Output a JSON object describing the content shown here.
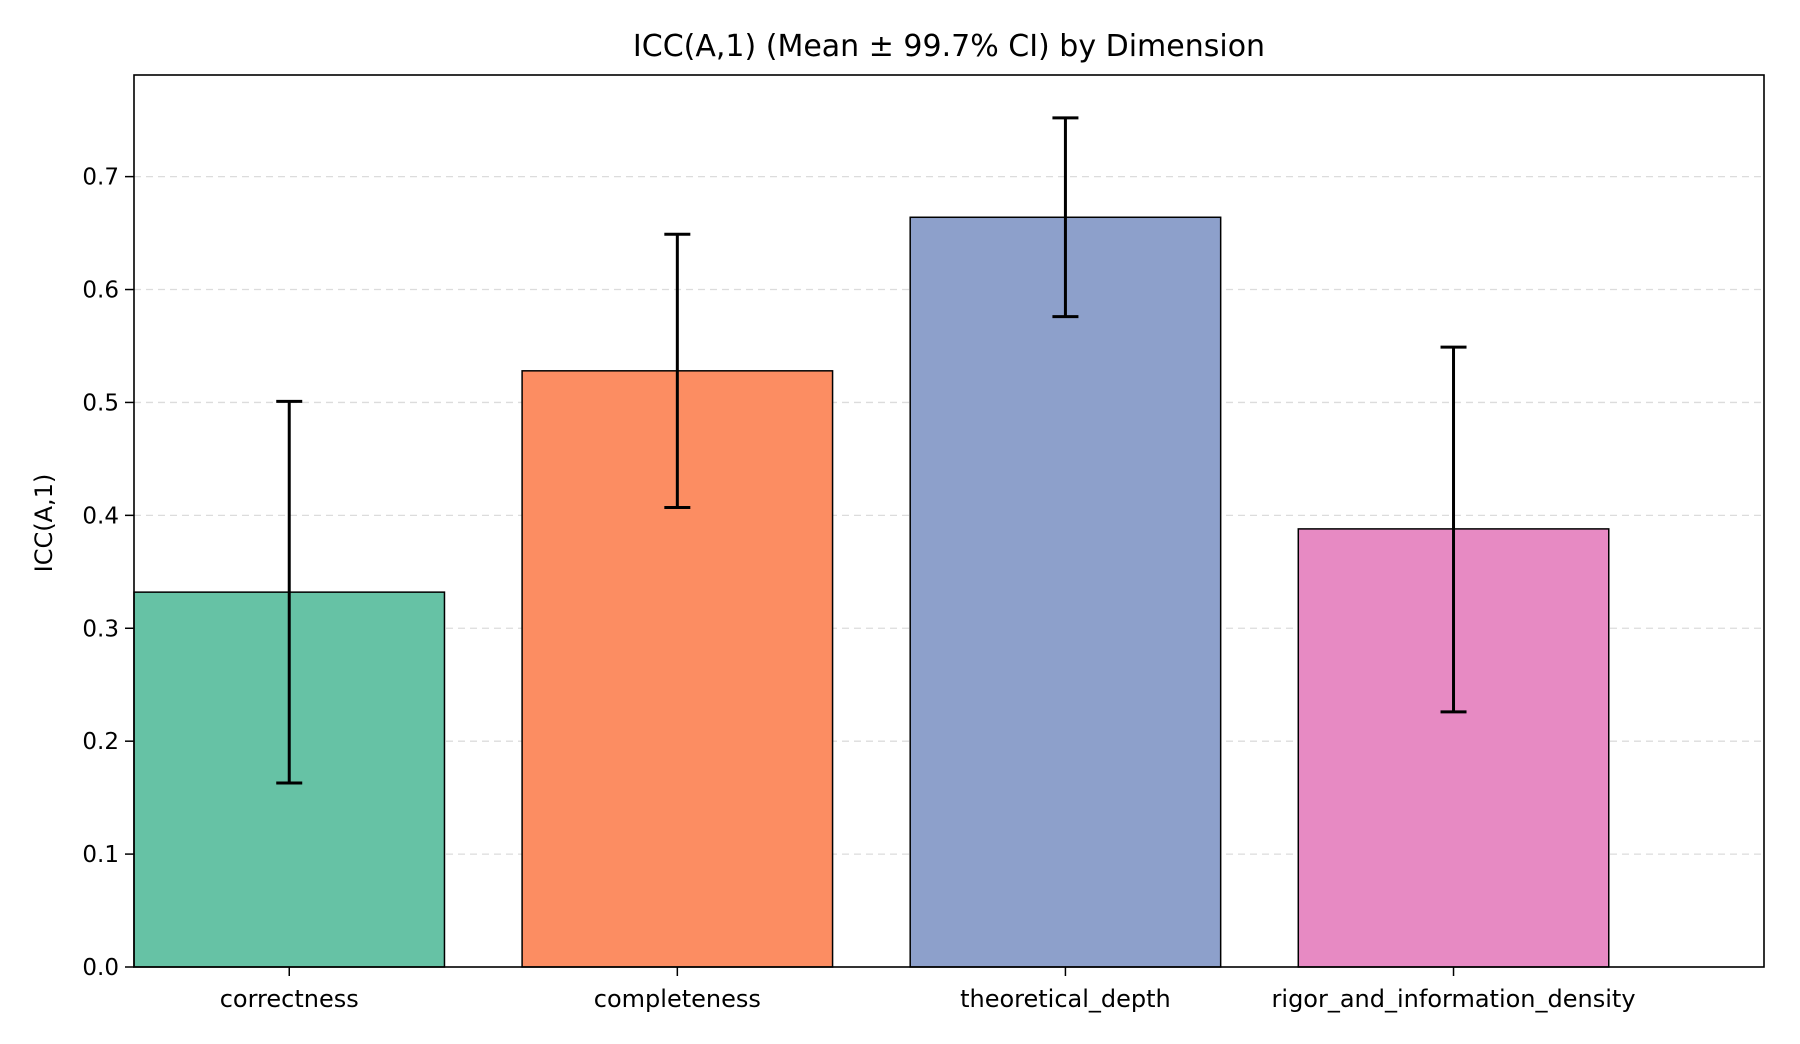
{
  "chart_data": {
    "type": "bar",
    "title": "ICC(A,1) (Mean ± 99.7% CI) by Dimension",
    "xlabel": "",
    "ylabel": "ICC(A,1)",
    "categories": [
      "correctness",
      "completeness",
      "theoretical_depth",
      "rigor_and_information_density"
    ],
    "values": [
      0.332,
      0.528,
      0.664,
      0.388
    ],
    "ci_lower": [
      0.163,
      0.407,
      0.576,
      0.226
    ],
    "ci_upper": [
      0.501,
      0.649,
      0.752,
      0.549
    ],
    "colors": [
      "#66c2a5",
      "#fc8d62",
      "#8da0cb",
      "#e78ac3"
    ],
    "ylim": [
      0,
      0.79
    ],
    "yticks": [
      "0.0",
      "0.1",
      "0.2",
      "0.3",
      "0.4",
      "0.5",
      "0.6",
      "0.7"
    ],
    "grid": "y-dashed",
    "legend": "none"
  }
}
